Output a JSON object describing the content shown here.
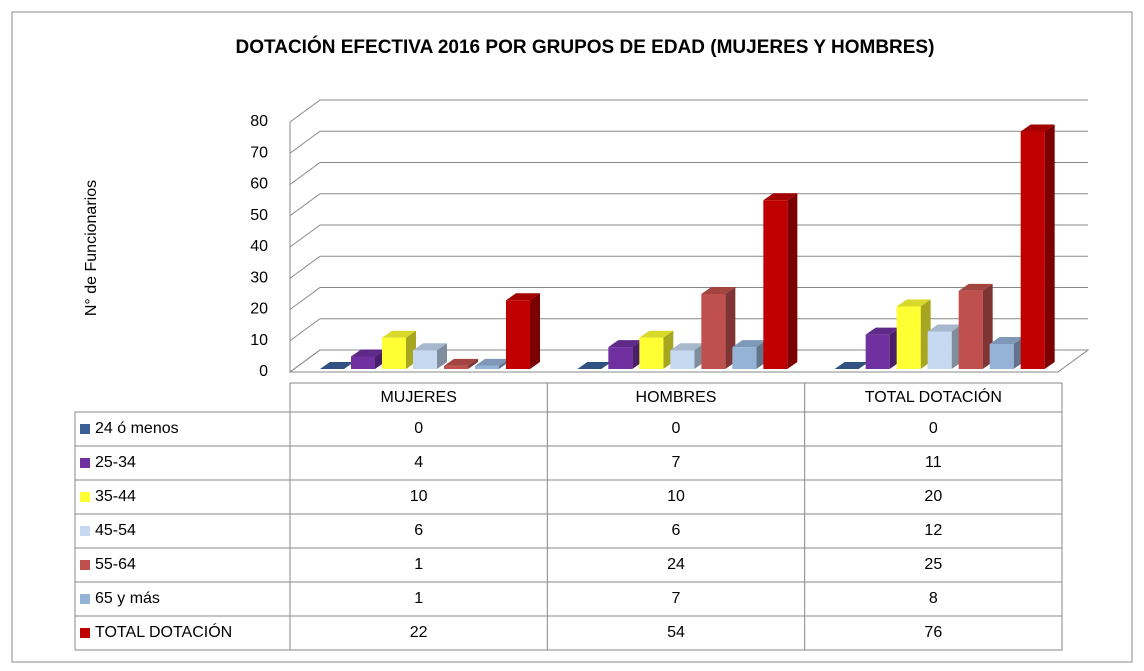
{
  "chart_data": {
    "type": "bar3d",
    "title": "DOTACIÓN EFECTIVA 2016  POR GRUPOS DE EDAD (MUJERES Y HOMBRES)",
    "y_label": "N° de Funcionarios",
    "categories": [
      "MUJERES",
      "HOMBRES",
      "TOTAL DOTACIÓN"
    ],
    "series": [
      {
        "name": "24 ó menos",
        "color": "#3a5f96",
        "values": [
          0,
          0,
          0
        ]
      },
      {
        "name": "25-34",
        "color": "#7030a0",
        "values": [
          4,
          7,
          11
        ]
      },
      {
        "name": "35-44",
        "color": "#ffff33",
        "values": [
          10,
          10,
          20
        ]
      },
      {
        "name": "45-54",
        "color": "#c5d9f1",
        "values": [
          6,
          6,
          12
        ]
      },
      {
        "name": "55-64",
        "color": "#c0504d",
        "values": [
          1,
          24,
          25
        ]
      },
      {
        "name": "65 y más",
        "color": "#95b3d7",
        "values": [
          1,
          7,
          8
        ]
      },
      {
        "name": "TOTAL DOTACIÓN",
        "color": "#c00000",
        "values": [
          22,
          54,
          76
        ]
      }
    ],
    "ylim": [
      0,
      80
    ],
    "yticks": [
      0,
      10,
      20,
      30,
      40,
      50,
      60,
      70,
      80
    ],
    "grid": true
  }
}
